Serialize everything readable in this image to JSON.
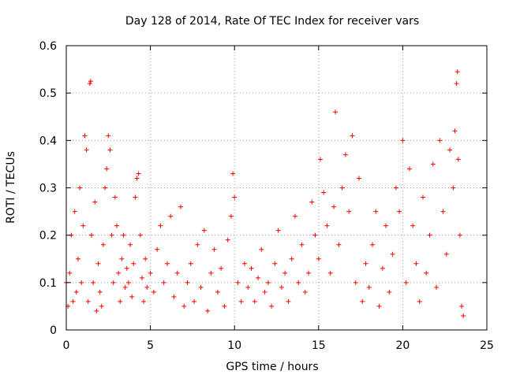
{
  "chart_data": {
    "type": "scatter",
    "title": "Day 128 of 2014, Rate Of TEC Index for receiver vars",
    "xlabel": "GPS time / hours",
    "ylabel": "ROTI / TECUs",
    "xlim": [
      0,
      25
    ],
    "ylim": [
      0,
      0.6
    ],
    "x_ticks": [
      0,
      5,
      10,
      15,
      20,
      25
    ],
    "y_ticks": [
      0,
      0.1,
      0.2,
      0.3,
      0.4,
      0.5,
      0.6
    ],
    "x_tick_labels": [
      "0",
      "5",
      "10",
      "15",
      "20",
      "25"
    ],
    "y_tick_labels": [
      "0",
      "0.1",
      "0.2",
      "0.3",
      "0.4",
      "0.5",
      "0.6"
    ],
    "grid": true,
    "marker": "plus",
    "color": "#ff0000",
    "series": [
      {
        "name": "ROTI",
        "points": [
          [
            0.0,
            0.1
          ],
          [
            0.1,
            0.05
          ],
          [
            0.2,
            0.12
          ],
          [
            0.3,
            0.2
          ],
          [
            0.4,
            0.06
          ],
          [
            0.5,
            0.25
          ],
          [
            0.6,
            0.08
          ],
          [
            0.7,
            0.15
          ],
          [
            0.8,
            0.3
          ],
          [
            0.9,
            0.1
          ],
          [
            1.0,
            0.22
          ],
          [
            1.1,
            0.41
          ],
          [
            1.2,
            0.38
          ],
          [
            1.3,
            0.06
          ],
          [
            1.4,
            0.52
          ],
          [
            1.45,
            0.525
          ],
          [
            1.5,
            0.2
          ],
          [
            1.6,
            0.1
          ],
          [
            1.7,
            0.27
          ],
          [
            1.8,
            0.04
          ],
          [
            1.9,
            0.14
          ],
          [
            2.0,
            0.08
          ],
          [
            2.1,
            0.05
          ],
          [
            2.2,
            0.18
          ],
          [
            2.3,
            0.3
          ],
          [
            2.4,
            0.34
          ],
          [
            2.5,
            0.41
          ],
          [
            2.6,
            0.38
          ],
          [
            2.7,
            0.2
          ],
          [
            2.8,
            0.1
          ],
          [
            2.9,
            0.28
          ],
          [
            3.0,
            0.22
          ],
          [
            3.1,
            0.12
          ],
          [
            3.2,
            0.06
          ],
          [
            3.3,
            0.15
          ],
          [
            3.4,
            0.2
          ],
          [
            3.5,
            0.09
          ],
          [
            3.6,
            0.13
          ],
          [
            3.7,
            0.1
          ],
          [
            3.8,
            0.18
          ],
          [
            3.9,
            0.07
          ],
          [
            4.0,
            0.14
          ],
          [
            4.1,
            0.28
          ],
          [
            4.2,
            0.32
          ],
          [
            4.3,
            0.33
          ],
          [
            4.4,
            0.2
          ],
          [
            4.5,
            0.11
          ],
          [
            4.6,
            0.06
          ],
          [
            4.7,
            0.15
          ],
          [
            4.8,
            0.09
          ],
          [
            5.0,
            0.12
          ],
          [
            5.2,
            0.08
          ],
          [
            5.4,
            0.17
          ],
          [
            5.6,
            0.22
          ],
          [
            5.8,
            0.1
          ],
          [
            6.0,
            0.14
          ],
          [
            6.2,
            0.24
          ],
          [
            6.4,
            0.07
          ],
          [
            6.6,
            0.12
          ],
          [
            6.8,
            0.26
          ],
          [
            7.0,
            0.05
          ],
          [
            7.2,
            0.1
          ],
          [
            7.4,
            0.14
          ],
          [
            7.6,
            0.06
          ],
          [
            7.8,
            0.18
          ],
          [
            8.0,
            0.09
          ],
          [
            8.2,
            0.21
          ],
          [
            8.4,
            0.04
          ],
          [
            8.6,
            0.12
          ],
          [
            8.8,
            0.17
          ],
          [
            9.0,
            0.08
          ],
          [
            9.2,
            0.13
          ],
          [
            9.4,
            0.05
          ],
          [
            9.6,
            0.19
          ],
          [
            9.8,
            0.24
          ],
          [
            9.9,
            0.33
          ],
          [
            10.0,
            0.28
          ],
          [
            10.2,
            0.1
          ],
          [
            10.4,
            0.06
          ],
          [
            10.6,
            0.14
          ],
          [
            10.8,
            0.09
          ],
          [
            11.0,
            0.13
          ],
          [
            11.2,
            0.06
          ],
          [
            11.4,
            0.11
          ],
          [
            11.6,
            0.17
          ],
          [
            11.8,
            0.08
          ],
          [
            12.0,
            0.1
          ],
          [
            12.2,
            0.05
          ],
          [
            12.4,
            0.14
          ],
          [
            12.6,
            0.21
          ],
          [
            12.8,
            0.09
          ],
          [
            13.0,
            0.12
          ],
          [
            13.2,
            0.06
          ],
          [
            13.4,
            0.15
          ],
          [
            13.6,
            0.24
          ],
          [
            13.8,
            0.1
          ],
          [
            14.0,
            0.18
          ],
          [
            14.2,
            0.08
          ],
          [
            14.4,
            0.12
          ],
          [
            14.6,
            0.27
          ],
          [
            14.8,
            0.2
          ],
          [
            15.0,
            0.15
          ],
          [
            15.1,
            0.36
          ],
          [
            15.3,
            0.29
          ],
          [
            15.5,
            0.22
          ],
          [
            15.7,
            0.12
          ],
          [
            15.9,
            0.26
          ],
          [
            16.0,
            0.46
          ],
          [
            16.2,
            0.18
          ],
          [
            16.4,
            0.3
          ],
          [
            16.6,
            0.37
          ],
          [
            16.8,
            0.25
          ],
          [
            17.0,
            0.41
          ],
          [
            17.2,
            0.1
          ],
          [
            17.4,
            0.32
          ],
          [
            17.6,
            0.06
          ],
          [
            17.8,
            0.14
          ],
          [
            18.0,
            0.09
          ],
          [
            18.2,
            0.18
          ],
          [
            18.4,
            0.25
          ],
          [
            18.6,
            0.05
          ],
          [
            18.8,
            0.13
          ],
          [
            19.0,
            0.22
          ],
          [
            19.2,
            0.08
          ],
          [
            19.4,
            0.16
          ],
          [
            19.6,
            0.3
          ],
          [
            19.8,
            0.25
          ],
          [
            20.0,
            0.4
          ],
          [
            20.2,
            0.1
          ],
          [
            20.4,
            0.34
          ],
          [
            20.6,
            0.22
          ],
          [
            20.8,
            0.14
          ],
          [
            21.0,
            0.06
          ],
          [
            21.2,
            0.28
          ],
          [
            21.4,
            0.12
          ],
          [
            21.6,
            0.2
          ],
          [
            21.8,
            0.35
          ],
          [
            22.0,
            0.09
          ],
          [
            22.2,
            0.4
          ],
          [
            22.4,
            0.25
          ],
          [
            22.6,
            0.16
          ],
          [
            22.8,
            0.38
          ],
          [
            23.0,
            0.3
          ],
          [
            23.1,
            0.42
          ],
          [
            23.2,
            0.52
          ],
          [
            23.25,
            0.545
          ],
          [
            23.3,
            0.36
          ],
          [
            23.4,
            0.2
          ],
          [
            23.5,
            0.05
          ],
          [
            23.6,
            0.03
          ]
        ]
      }
    ]
  }
}
